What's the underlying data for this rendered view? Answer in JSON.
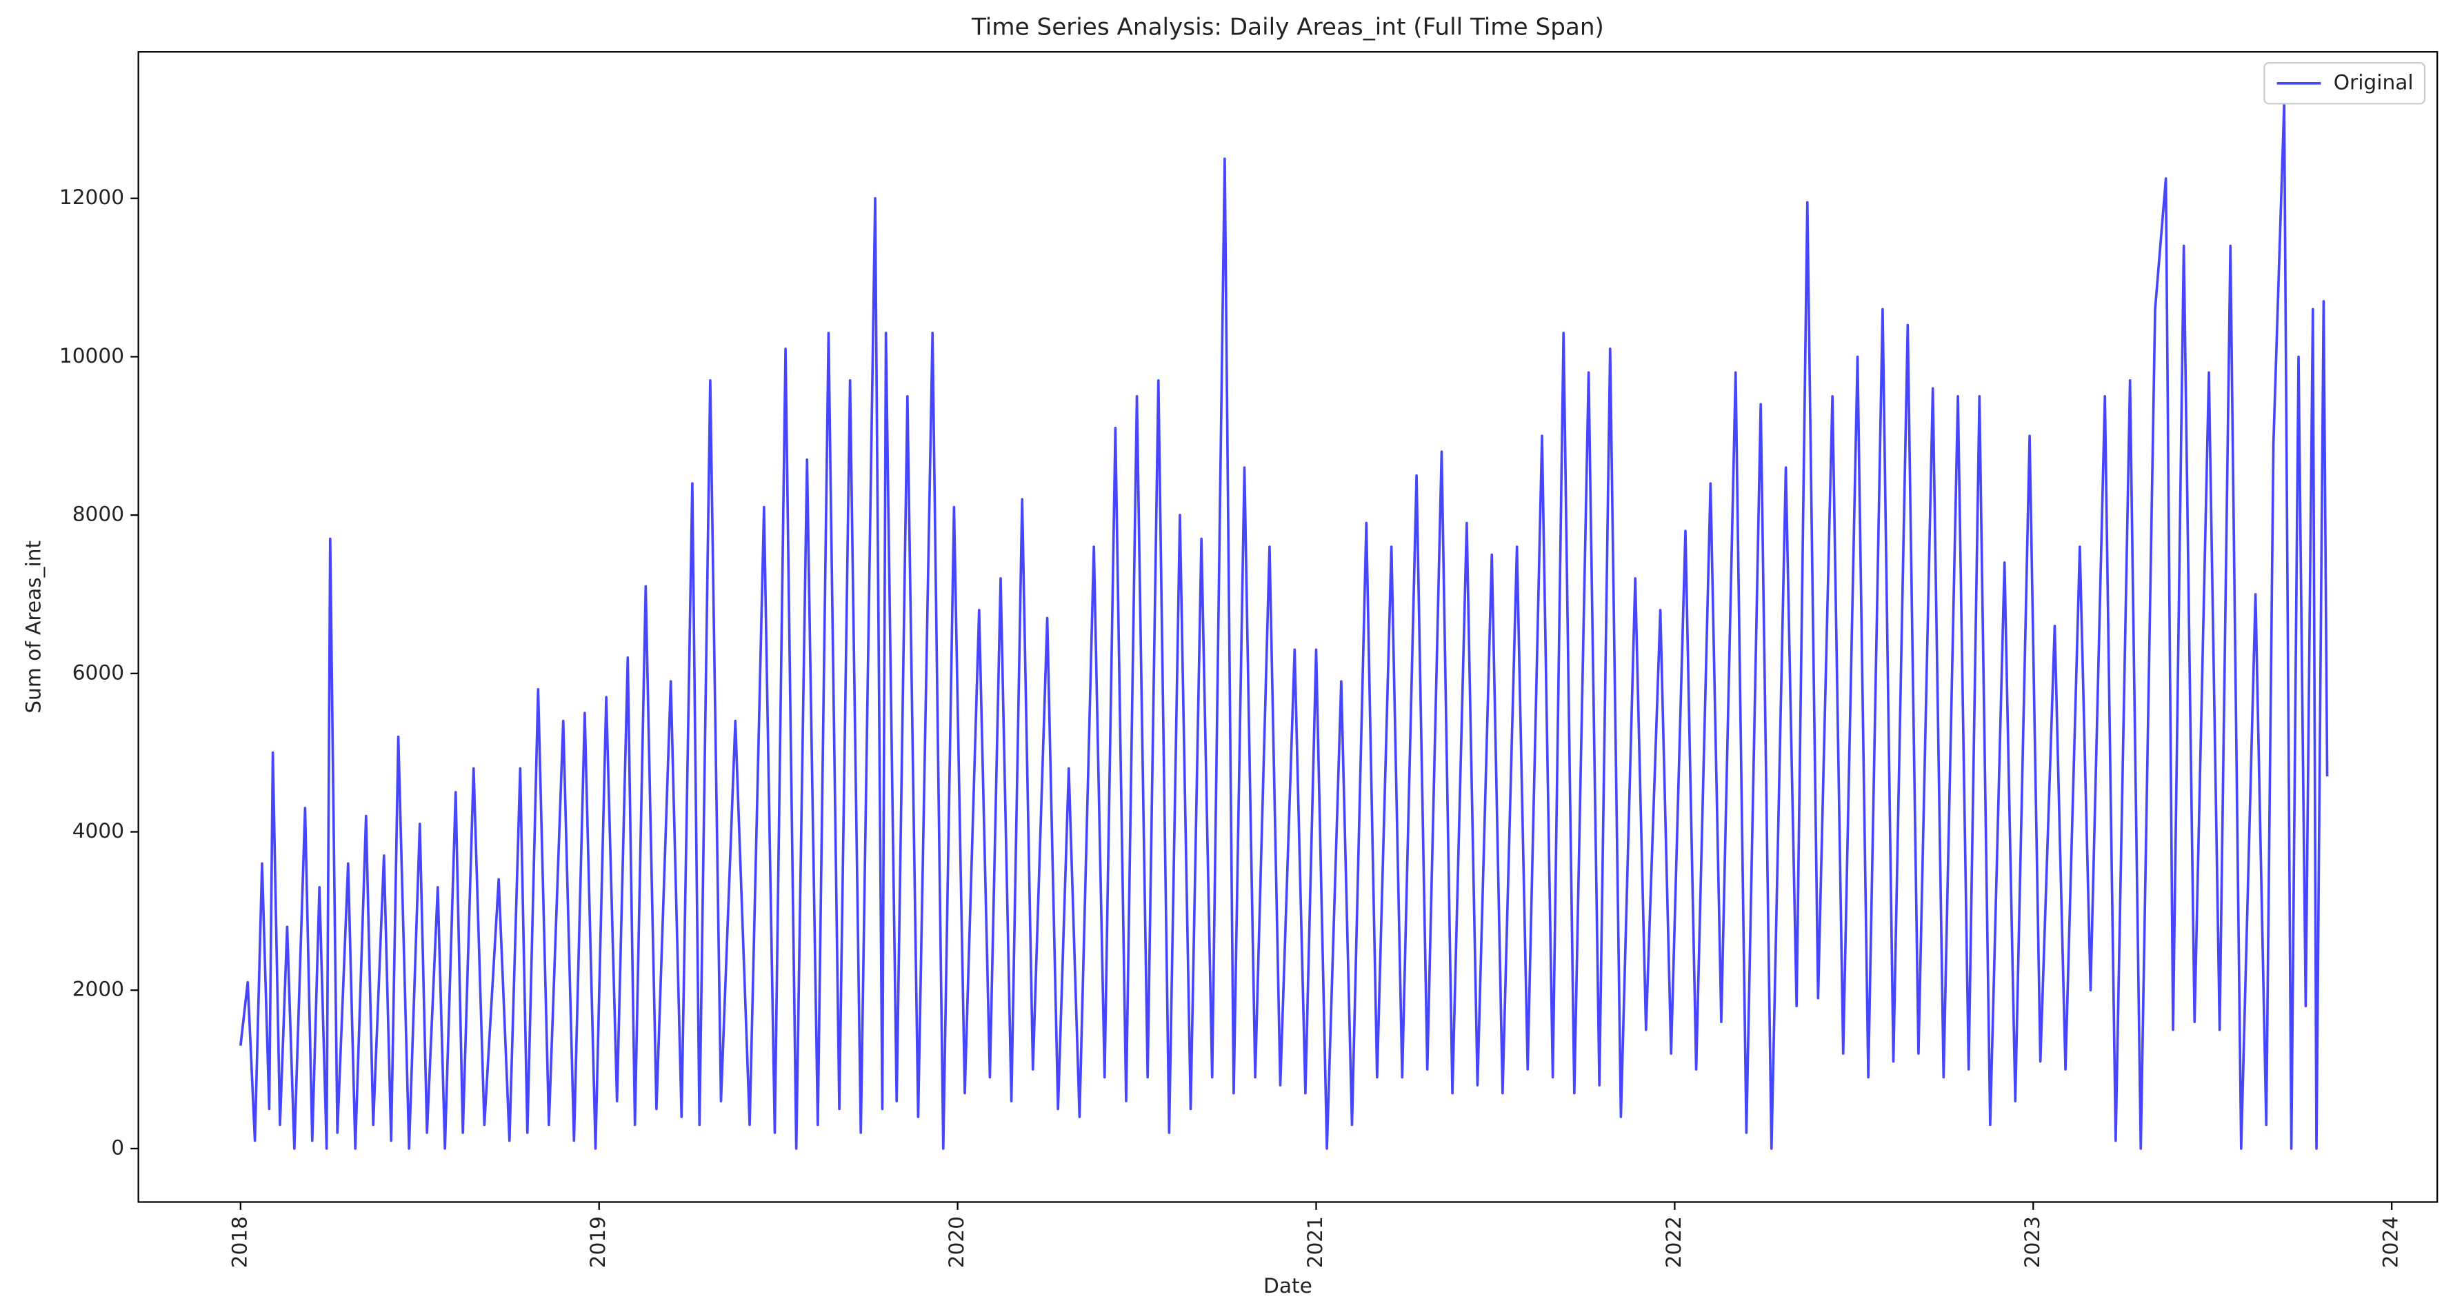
{
  "chart_data": {
    "type": "line",
    "title": "Time Series Analysis: Daily Areas_int (Full Time Span)",
    "x_label": "Date",
    "y_label": "Sum of Areas_int",
    "x": [
      2018.0,
      2018.02,
      2018.04,
      2018.06,
      2018.08,
      2018.09,
      2018.11,
      2018.13,
      2018.15,
      2018.18,
      2018.2,
      2018.22,
      2018.24,
      2018.25,
      2018.27,
      2018.3,
      2018.32,
      2018.35,
      2018.37,
      2018.4,
      2018.42,
      2018.44,
      2018.47,
      2018.5,
      2018.52,
      2018.55,
      2018.57,
      2018.6,
      2018.62,
      2018.65,
      2018.68,
      2018.72,
      2018.75,
      2018.78,
      2018.8,
      2018.83,
      2018.86,
      2018.9,
      2018.93,
      2018.96,
      2018.99,
      2019.02,
      2019.05,
      2019.08,
      2019.1,
      2019.13,
      2019.16,
      2019.2,
      2019.23,
      2019.26,
      2019.28,
      2019.31,
      2019.34,
      2019.38,
      2019.42,
      2019.46,
      2019.49,
      2019.52,
      2019.55,
      2019.58,
      2019.61,
      2019.64,
      2019.67,
      2019.7,
      2019.73,
      2019.77,
      2019.79,
      2019.8,
      2019.83,
      2019.86,
      2019.89,
      2019.93,
      2019.96,
      2019.99,
      2020.02,
      2020.06,
      2020.09,
      2020.12,
      2020.15,
      2020.18,
      2020.21,
      2020.25,
      2020.28,
      2020.31,
      2020.34,
      2020.38,
      2020.41,
      2020.44,
      2020.47,
      2020.5,
      2020.53,
      2020.56,
      2020.59,
      2020.62,
      2020.65,
      2020.68,
      2020.71,
      2020.745,
      2020.77,
      2020.8,
      2020.83,
      2020.87,
      2020.9,
      2020.94,
      2020.97,
      2021.0,
      2021.03,
      2021.07,
      2021.1,
      2021.14,
      2021.17,
      2021.21,
      2021.24,
      2021.28,
      2021.31,
      2021.35,
      2021.38,
      2021.42,
      2021.45,
      2021.49,
      2021.52,
      2021.56,
      2021.59,
      2021.63,
      2021.66,
      2021.69,
      2021.72,
      2021.76,
      2021.79,
      2021.82,
      2021.85,
      2021.89,
      2021.92,
      2021.96,
      2021.99,
      2022.03,
      2022.06,
      2022.1,
      2022.13,
      2022.17,
      2022.2,
      2022.24,
      2022.27,
      2022.31,
      2022.34,
      2022.37,
      2022.4,
      2022.44,
      2022.47,
      2022.51,
      2022.54,
      2022.58,
      2022.61,
      2022.65,
      2022.68,
      2022.72,
      2022.75,
      2022.79,
      2022.82,
      2022.85,
      2022.88,
      2022.92,
      2022.95,
      2022.99,
      2023.02,
      2023.06,
      2023.09,
      2023.13,
      2023.16,
      2023.2,
      2023.23,
      2023.27,
      2023.3,
      2023.34,
      2023.37,
      2023.39,
      2023.42,
      2023.45,
      2023.49,
      2023.52,
      2023.55,
      2023.58,
      2023.62,
      2023.65,
      2023.67,
      2023.7,
      2023.72,
      2023.74,
      2023.76,
      2023.78,
      2023.79,
      2023.81,
      2023.82
    ],
    "series": [
      {
        "name": "Original",
        "color": "#4646ff",
        "values": [
          1300,
          2100,
          100,
          3600,
          500,
          5000,
          300,
          2800,
          0,
          4300,
          100,
          3300,
          0,
          7700,
          200,
          3600,
          0,
          4200,
          300,
          3700,
          100,
          5200,
          0,
          4100,
          200,
          3300,
          0,
          4500,
          200,
          4800,
          300,
          3400,
          100,
          4800,
          200,
          5800,
          300,
          5400,
          100,
          5500,
          0,
          5700,
          600,
          6200,
          300,
          7100,
          500,
          5900,
          400,
          8400,
          300,
          9700,
          600,
          5400,
          300,
          8100,
          200,
          10100,
          0,
          8700,
          300,
          10300,
          500,
          9700,
          200,
          12000,
          500,
          10300,
          600,
          9500,
          400,
          10300,
          0,
          8100,
          700,
          6800,
          900,
          7200,
          600,
          8200,
          1000,
          6700,
          500,
          4800,
          400,
          7600,
          900,
          9100,
          600,
          9500,
          900,
          9700,
          200,
          8000,
          500,
          7700,
          900,
          12500,
          700,
          8600,
          900,
          7600,
          800,
          6300,
          700,
          6300,
          0,
          5900,
          300,
          7900,
          900,
          7600,
          900,
          8500,
          1000,
          8800,
          700,
          7900,
          800,
          7500,
          700,
          7600,
          1000,
          9000,
          900,
          10300,
          700,
          9800,
          800,
          10100,
          400,
          7200,
          1500,
          6800,
          1200,
          7800,
          1000,
          8400,
          1600,
          9800,
          200,
          9400,
          0,
          8600,
          1800,
          11950,
          1900,
          9500,
          1200,
          10000,
          900,
          10600,
          1100,
          10400,
          1200,
          9600,
          900,
          9500,
          1000,
          9500,
          300,
          7400,
          600,
          9000,
          1100,
          6600,
          1000,
          7600,
          2000,
          9500,
          100,
          9700,
          0,
          10600,
          12250,
          1500,
          11400,
          1600,
          9800,
          1500,
          11400,
          0,
          7000,
          300,
          8900,
          13200,
          0,
          10000,
          1800,
          10600,
          0,
          10700,
          4700
        ]
      }
    ],
    "xlim": [
      2017.715,
      2024.127
    ],
    "xticks": [
      2018,
      2019,
      2020,
      2021,
      2022,
      2023,
      2024
    ],
    "ylim": [
      -675,
      13850
    ],
    "yticks": [
      0,
      2000,
      4000,
      6000,
      8000,
      10000,
      12000
    ],
    "legend": "upper right"
  }
}
